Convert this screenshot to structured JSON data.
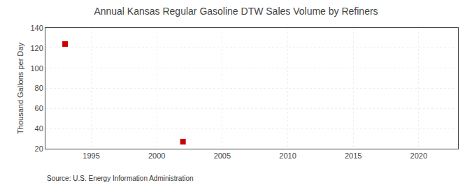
{
  "chart_data": {
    "type": "scatter",
    "title": "Annual Kansas Regular Gasoline DTW Sales Volume by Refiners",
    "ylabel": "Thousand Gallons per Day",
    "source": "Source: U.S. Energy Information Administration",
    "x": [
      1993,
      2002
    ],
    "values": [
      124,
      27
    ],
    "color": "#cc0000",
    "marker": "square",
    "xlim": [
      1991.5,
      2023
    ],
    "ylim": [
      20,
      140
    ],
    "xticks": [
      1995,
      2000,
      2005,
      2010,
      2015,
      2020
    ],
    "yticks": [
      20,
      40,
      60,
      80,
      100,
      120,
      140
    ],
    "grid": true
  }
}
